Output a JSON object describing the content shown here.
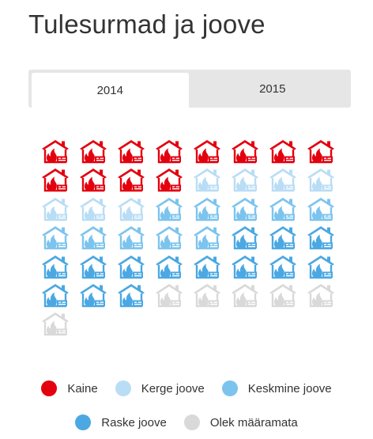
{
  "title": "Tulesurmad ja joove",
  "tabs": [
    {
      "label": "2014",
      "active": true
    },
    {
      "label": "2015",
      "active": false
    }
  ],
  "icon": "burning-house-icon",
  "chart_data": {
    "type": "pictogram",
    "year": "2014",
    "columns": 8,
    "categories": [
      {
        "name": "Kaine",
        "count": 12,
        "color": "#e3000f"
      },
      {
        "name": "Kerge joove",
        "count": 7,
        "color": "#b9ddf5"
      },
      {
        "name": "Keskmine joove",
        "count": 10,
        "color": "#7cc4ee"
      },
      {
        "name": "Raske joove",
        "count": 14,
        "color": "#4ba8e2"
      },
      {
        "name": "Olek määramata",
        "count": 6,
        "color": "#d9d9d9"
      }
    ]
  }
}
